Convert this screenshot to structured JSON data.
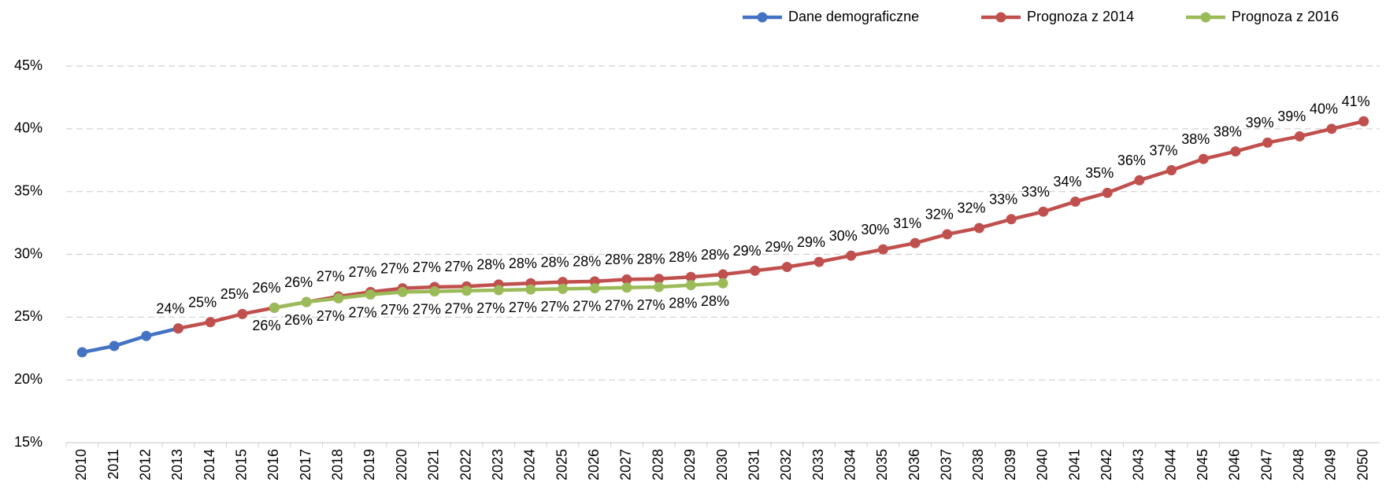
{
  "chart_data": {
    "type": "line",
    "categories": [
      "2010",
      "2011",
      "2012",
      "2013",
      "2014",
      "2015",
      "2016",
      "2017",
      "2018",
      "2019",
      "2020",
      "2021",
      "2022",
      "2023",
      "2024",
      "2025",
      "2026",
      "2027",
      "2028",
      "2029",
      "2030",
      "2031",
      "2032",
      "2033",
      "2034",
      "2035",
      "2036",
      "2037",
      "2038",
      "2039",
      "2040",
      "2041",
      "2042",
      "2043",
      "2044",
      "2045",
      "2046",
      "2047",
      "2048",
      "2049",
      "2050"
    ],
    "series": [
      {
        "name": "Dane demograficzne",
        "color": "#4472c4",
        "values": [
          22.2,
          22.7,
          23.5,
          24.1,
          null,
          null,
          null,
          null,
          null,
          null,
          null,
          null,
          null,
          null,
          null,
          null,
          null,
          null,
          null,
          null,
          null,
          null,
          null,
          null,
          null,
          null,
          null,
          null,
          null,
          null,
          null,
          null,
          null,
          null,
          null,
          null,
          null,
          null,
          null,
          null,
          null
        ]
      },
      {
        "name": "Prognoza z 2014",
        "color": "#c0504d",
        "values": [
          null,
          null,
          null,
          24.1,
          24.6,
          25.25,
          25.75,
          26.2,
          26.65,
          27.0,
          27.3,
          27.4,
          27.45,
          27.6,
          27.7,
          27.8,
          27.85,
          28.0,
          28.05,
          28.2,
          28.4,
          28.7,
          29.0,
          29.4,
          29.9,
          30.4,
          30.9,
          31.6,
          32.1,
          32.8,
          33.4,
          34.2,
          34.9,
          35.9,
          36.7,
          37.6,
          38.2,
          38.9,
          39.4,
          40.0,
          40.6
        ],
        "value_labels": [
          null,
          null,
          null,
          "24%",
          "25%",
          "25%",
          "26%",
          "26%",
          "27%",
          "27%",
          "27%",
          "27%",
          "27%",
          "28%",
          "28%",
          "28%",
          "28%",
          "28%",
          "28%",
          "28%",
          "28%",
          "29%",
          "29%",
          "29%",
          "30%",
          "30%",
          "31%",
          "32%",
          "32%",
          "33%",
          "33%",
          "34%",
          "35%",
          "36%",
          "37%",
          "38%",
          "38%",
          "39%",
          "39%",
          "40%",
          "41%"
        ]
      },
      {
        "name": "Prognoza z 2016",
        "color": "#9bbb59",
        "values": [
          null,
          null,
          null,
          null,
          null,
          null,
          25.75,
          26.2,
          26.5,
          26.8,
          27.0,
          27.05,
          27.1,
          27.15,
          27.2,
          27.25,
          27.3,
          27.35,
          27.4,
          27.55,
          27.7,
          null,
          null,
          null,
          null,
          null,
          null,
          null,
          null,
          null,
          null,
          null,
          null,
          null,
          null,
          null,
          null,
          null,
          null,
          null,
          null
        ],
        "value_labels": [
          null,
          null,
          null,
          null,
          null,
          null,
          "26%",
          "26%",
          "27%",
          "27%",
          "27%",
          "27%",
          "27%",
          "27%",
          "27%",
          "27%",
          "27%",
          "27%",
          "27%",
          "28%",
          "28%",
          null,
          null,
          null,
          null,
          null,
          null,
          null,
          null,
          null,
          null,
          null,
          null,
          null,
          null,
          null,
          null,
          null,
          null,
          null,
          null
        ]
      }
    ],
    "ylim": [
      15,
      45
    ],
    "yticks": [
      {
        "value": 15,
        "label": "15%"
      },
      {
        "value": 20,
        "label": "20%"
      },
      {
        "value": 25,
        "label": "25%"
      },
      {
        "value": 30,
        "label": "30%"
      },
      {
        "value": 35,
        "label": "35%"
      },
      {
        "value": 40,
        "label": "40%"
      },
      {
        "value": 45,
        "label": "45%"
      }
    ],
    "grid": true,
    "legend": "top-right"
  }
}
